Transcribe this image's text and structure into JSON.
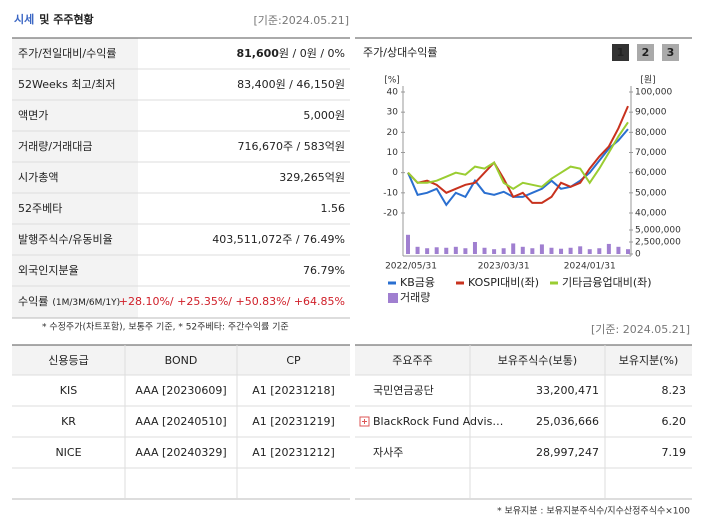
{
  "header": {
    "title_highlight": "시세",
    "title_rest": "및 주주현황",
    "date": "[기준:2024.05.21]"
  },
  "price_table": {
    "rows": [
      {
        "label": "주가/전일대비/수익률",
        "value_bold": "81,600",
        "value": "원 / 0원 / 0%"
      },
      {
        "label": "52Weeks 최고/최저",
        "value": "83,400원 / 46,150원"
      },
      {
        "label": "액면가",
        "value": "5,000원"
      },
      {
        "label": "거래량/거래대금",
        "value": "716,670주 / 583억원"
      },
      {
        "label": "시가총액",
        "value": "329,265억원"
      },
      {
        "label": "52주베타",
        "value": "1.56"
      },
      {
        "label": "발행주식수/유동비율",
        "value": "403,511,072주 / 76.49%"
      },
      {
        "label": "외국인지분율",
        "value": "76.79%"
      },
      {
        "label": "수익률",
        "sublabel": "(1M/3M/6M/1Y)",
        "value": "+28.10%/ +25.35%/ +50.83%/ +64.85%"
      }
    ],
    "note": "* 수정주가(차트포함), 보통주 기준, * 52주베타: 주간수익률 기준"
  },
  "chart_data": {
    "type": "line",
    "title": "주가/상대수익률",
    "buttons": [
      "1",
      "2",
      "3"
    ],
    "y_label": "[%]",
    "y2_label": "[원]",
    "categories": [
      "2022/05/31",
      null,
      null,
      null,
      null,
      null,
      null,
      null,
      null,
      null,
      "2023/03/31",
      null,
      null,
      null,
      null,
      null,
      null,
      null,
      null,
      "2024/01/31",
      null,
      null,
      null,
      null
    ],
    "ylim": [
      -20,
      40
    ],
    "yticks": [
      40,
      30,
      20,
      10,
      0,
      -10,
      -20
    ],
    "y2lim": [
      40000,
      100000
    ],
    "y2ticks": [
      {
        "value": 100000,
        "label": "100,000"
      },
      {
        "value": 90000,
        "label": "90,000"
      },
      {
        "value": 80000,
        "label": "80,000"
      },
      {
        "value": 70000,
        "label": "70,000"
      },
      {
        "value": 60000,
        "label": "60,000"
      },
      {
        "value": 50000,
        "label": "50,000"
      },
      {
        "value": 40000,
        "label": "40,000"
      }
    ],
    "y3lim": [
      0,
      5000000
    ],
    "y3ticks": [
      {
        "value": 5000000,
        "label": "5,000,000"
      },
      {
        "value": 2500000,
        "label": "2,500,000"
      },
      0
    ],
    "series": [
      {
        "name": "KB금융",
        "color": "#2a6fd0",
        "axis": "y2",
        "values": [
          60000,
          49000,
          50000,
          52000,
          44000,
          50000,
          48000,
          56000,
          50000,
          49000,
          50500,
          48000,
          48000,
          50000,
          52000,
          56000,
          52000,
          53000,
          56000,
          60000,
          66000,
          72000,
          76000,
          81600
        ]
      },
      {
        "name": "KOSPI대비(좌)",
        "color": "#c8321e",
        "values": [
          0,
          -5,
          -4,
          -6,
          -10,
          -8,
          -6,
          -5,
          0,
          5,
          -3,
          -12,
          -10,
          -15,
          -15,
          -12,
          -5,
          -7,
          -5,
          2,
          8,
          13,
          22,
          33
        ]
      },
      {
        "name": "기타금융업대비(좌)",
        "color": "#9acd32",
        "values": [
          0,
          -5,
          -5,
          -4,
          -2,
          0,
          -1,
          3,
          2,
          5,
          -5,
          -8,
          -5,
          -6,
          -7,
          -3,
          0,
          3,
          2,
          -5,
          2,
          10,
          18,
          25
        ]
      },
      {
        "name": "거래량",
        "color": "#a07fd0",
        "type": "bar",
        "axis": "y3",
        "values": [
          4000000,
          1500000,
          1200000,
          1400000,
          1300000,
          1500000,
          1200000,
          2500000,
          1300000,
          1000000,
          1200000,
          2200000,
          1500000,
          1200000,
          2000000,
          1300000,
          1100000,
          1300000,
          1600000,
          1000000,
          1200000,
          2100000,
          1500000,
          1000000
        ]
      }
    ]
  },
  "credit_table": {
    "headers": [
      "신용등급",
      "BOND",
      "CP"
    ],
    "rows": [
      [
        "KIS",
        "AAA [20230609]",
        "A1 [20231218]"
      ],
      [
        "KR",
        "AAA [20240510]",
        "A1 [20231219]"
      ],
      [
        "NICE",
        "AAA [20240329]",
        "A1 [20231212]"
      ]
    ]
  },
  "holder_table": {
    "date": "[기준: 2024.05.21]",
    "headers": [
      "주요주주",
      "보유주식수(보통)",
      "보유지분(%)"
    ],
    "rows": [
      [
        "국민연금공단",
        "33,200,471",
        "8.23"
      ],
      [
        "BlackRock Fund Advis…",
        "25,036,666",
        "6.20"
      ],
      [
        "자사주",
        "28,997,247",
        "7.19"
      ]
    ],
    "note": "* 보유지분 : 보유지분주식수/지수산정주식수×100"
  }
}
